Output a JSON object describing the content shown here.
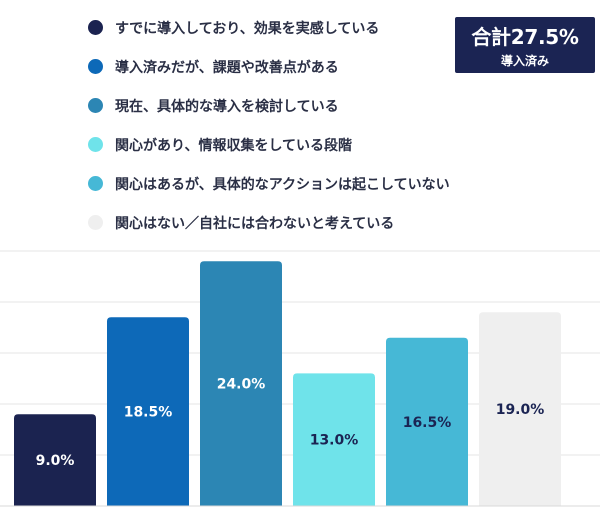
{
  "total_badge": {
    "value": "合計27.5%",
    "label": "導入済み"
  },
  "chart_data": {
    "type": "bar",
    "categories": [
      "すでに導入しており、効果を実感している",
      "導入済みだが、課題や改善点がある",
      "現在、具体的な導入を検討している",
      "関心があり、情報収集をしている段階",
      "関心はあるが、具体的なアクションは起こしていない",
      "関心はない／自社には合わないと考えている"
    ],
    "values": [
      9.0,
      18.5,
      24.0,
      13.0,
      16.5,
      19.0
    ],
    "value_labels": [
      "9.0%",
      "18.5%",
      "24.0%",
      "13.0%",
      "16.5%",
      "19.0%"
    ],
    "colors": [
      "#1b2350",
      "#0d69b8",
      "#2c86b4",
      "#6fe3ea",
      "#46b8d6",
      "#efefef"
    ],
    "label_colors": [
      "#ffffff",
      "#ffffff",
      "#ffffff",
      "#1b2453",
      "#1b2453",
      "#1b2453"
    ],
    "ylim": [
      0,
      26
    ],
    "grid": true,
    "legend_position": "top-left"
  }
}
